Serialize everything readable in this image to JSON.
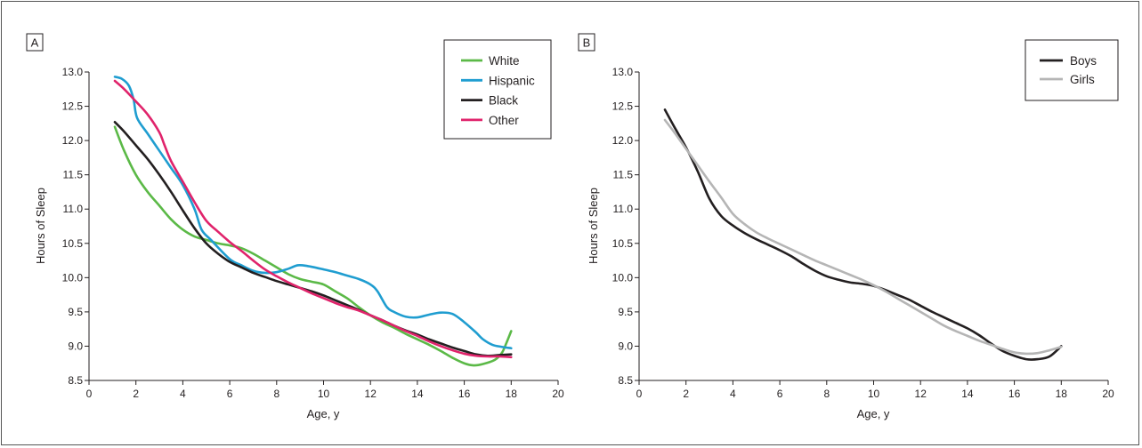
{
  "chart_data": [
    {
      "type": "line",
      "panel_label": "A",
      "xlabel": "Age, y",
      "ylabel": "Hours of Sleep",
      "xlim": [
        0,
        20
      ],
      "ylim": [
        8.5,
        13.0
      ],
      "xticks": [
        0,
        2,
        4,
        6,
        8,
        10,
        12,
        14,
        16,
        18,
        20
      ],
      "yticks": [
        "8.5",
        "9.0",
        "9.5",
        "10.0",
        "10.5",
        "11.0",
        "11.5",
        "12.0",
        "12.5",
        "13.0"
      ],
      "grid": false,
      "legend_position": "top-right",
      "series": [
        {
          "name": "White",
          "color": "#5bb947",
          "points": [
            [
              1.1,
              12.2
            ],
            [
              1.5,
              11.85
            ],
            [
              2,
              11.5
            ],
            [
              2.5,
              11.25
            ],
            [
              3,
              11.05
            ],
            [
              3.5,
              10.85
            ],
            [
              4,
              10.7
            ],
            [
              4.5,
              10.6
            ],
            [
              5,
              10.55
            ],
            [
              5.5,
              10.5
            ],
            [
              6,
              10.47
            ],
            [
              6.5,
              10.43
            ],
            [
              7,
              10.35
            ],
            [
              7.5,
              10.25
            ],
            [
              8,
              10.15
            ],
            [
              8.5,
              10.05
            ],
            [
              9,
              9.98
            ],
            [
              9.5,
              9.94
            ],
            [
              10,
              9.9
            ],
            [
              10.5,
              9.8
            ],
            [
              11,
              9.7
            ],
            [
              11.5,
              9.57
            ],
            [
              12,
              9.45
            ],
            [
              12.5,
              9.35
            ],
            [
              13,
              9.27
            ],
            [
              13.5,
              9.18
            ],
            [
              14,
              9.1
            ],
            [
              14.5,
              9.02
            ],
            [
              15,
              8.93
            ],
            [
              15.5,
              8.83
            ],
            [
              16,
              8.75
            ],
            [
              16.4,
              8.72
            ],
            [
              16.8,
              8.74
            ],
            [
              17.3,
              8.8
            ],
            [
              17.6,
              8.9
            ],
            [
              17.8,
              9.05
            ],
            [
              18,
              9.22
            ]
          ]
        },
        {
          "name": "Hispanic",
          "color": "#1f9dd0",
          "points": [
            [
              1.1,
              12.93
            ],
            [
              1.4,
              12.9
            ],
            [
              1.7,
              12.8
            ],
            [
              1.9,
              12.6
            ],
            [
              2.05,
              12.33
            ],
            [
              2.5,
              12.1
            ],
            [
              3,
              11.85
            ],
            [
              3.5,
              11.6
            ],
            [
              4,
              11.35
            ],
            [
              4.5,
              11.0
            ],
            [
              4.8,
              10.7
            ],
            [
              5.2,
              10.55
            ],
            [
              6,
              10.27
            ],
            [
              6.5,
              10.18
            ],
            [
              7,
              10.1
            ],
            [
              7.5,
              10.07
            ],
            [
              8,
              10.08
            ],
            [
              8.5,
              10.13
            ],
            [
              8.9,
              10.18
            ],
            [
              9.3,
              10.17
            ],
            [
              10,
              10.12
            ],
            [
              10.5,
              10.08
            ],
            [
              11,
              10.03
            ],
            [
              11.5,
              9.98
            ],
            [
              12,
              9.9
            ],
            [
              12.3,
              9.8
            ],
            [
              12.7,
              9.57
            ],
            [
              13,
              9.5
            ],
            [
              13.5,
              9.43
            ],
            [
              14,
              9.42
            ],
            [
              14.5,
              9.46
            ],
            [
              15,
              9.49
            ],
            [
              15.5,
              9.47
            ],
            [
              16,
              9.35
            ],
            [
              16.5,
              9.2
            ],
            [
              16.8,
              9.1
            ],
            [
              17.2,
              9.02
            ],
            [
              17.6,
              8.99
            ],
            [
              18,
              8.97
            ]
          ]
        },
        {
          "name": "Black",
          "color": "#231f20",
          "points": [
            [
              1.1,
              12.27
            ],
            [
              1.5,
              12.13
            ],
            [
              2,
              11.93
            ],
            [
              2.5,
              11.73
            ],
            [
              3,
              11.5
            ],
            [
              3.5,
              11.25
            ],
            [
              4,
              10.98
            ],
            [
              4.5,
              10.72
            ],
            [
              5,
              10.5
            ],
            [
              5.5,
              10.35
            ],
            [
              6,
              10.23
            ],
            [
              6.5,
              10.15
            ],
            [
              7,
              10.07
            ],
            [
              7.5,
              10.01
            ],
            [
              8,
              9.95
            ],
            [
              8.5,
              9.9
            ],
            [
              9,
              9.85
            ],
            [
              9.5,
              9.8
            ],
            [
              10,
              9.74
            ],
            [
              10.5,
              9.67
            ],
            [
              11,
              9.6
            ],
            [
              11.5,
              9.53
            ],
            [
              12,
              9.45
            ],
            [
              12.5,
              9.38
            ],
            [
              13,
              9.3
            ],
            [
              13.5,
              9.23
            ],
            [
              14,
              9.17
            ],
            [
              14.5,
              9.1
            ],
            [
              15,
              9.04
            ],
            [
              15.5,
              8.98
            ],
            [
              16,
              8.93
            ],
            [
              16.5,
              8.88
            ],
            [
              17,
              8.86
            ],
            [
              17.5,
              8.87
            ],
            [
              18,
              8.88
            ]
          ]
        },
        {
          "name": "Other",
          "color": "#e0236b",
          "points": [
            [
              1.1,
              12.87
            ],
            [
              1.5,
              12.75
            ],
            [
              2,
              12.57
            ],
            [
              2.5,
              12.38
            ],
            [
              3,
              12.12
            ],
            [
              3.2,
              11.95
            ],
            [
              3.5,
              11.7
            ],
            [
              4,
              11.4
            ],
            [
              4.5,
              11.1
            ],
            [
              5,
              10.83
            ],
            [
              5.5,
              10.67
            ],
            [
              6,
              10.52
            ],
            [
              6.5,
              10.39
            ],
            [
              7,
              10.25
            ],
            [
              7.5,
              10.12
            ],
            [
              8,
              10.02
            ],
            [
              8.5,
              9.93
            ],
            [
              9,
              9.85
            ],
            [
              9.5,
              9.77
            ],
            [
              10,
              9.7
            ],
            [
              10.5,
              9.63
            ],
            [
              11,
              9.57
            ],
            [
              11.5,
              9.52
            ],
            [
              12,
              9.45
            ],
            [
              12.5,
              9.38
            ],
            [
              13,
              9.3
            ],
            [
              13.5,
              9.22
            ],
            [
              14,
              9.15
            ],
            [
              14.5,
              9.07
            ],
            [
              15,
              9.0
            ],
            [
              15.5,
              8.94
            ],
            [
              16,
              8.89
            ],
            [
              16.5,
              8.86
            ],
            [
              17,
              8.85
            ],
            [
              17.5,
              8.85
            ],
            [
              18,
              8.84
            ]
          ]
        }
      ]
    },
    {
      "type": "line",
      "panel_label": "B",
      "xlabel": "Age, y",
      "ylabel": "Hours of Sleep",
      "xlim": [
        0,
        20
      ],
      "ylim": [
        8.5,
        13.0
      ],
      "xticks": [
        0,
        2,
        4,
        6,
        8,
        10,
        12,
        14,
        16,
        18,
        20
      ],
      "yticks": [
        "8.5",
        "9.0",
        "9.5",
        "10.0",
        "10.5",
        "11.0",
        "11.5",
        "12.0",
        "12.5",
        "13.0"
      ],
      "grid": false,
      "legend_position": "top-right",
      "series": [
        {
          "name": "Boys",
          "color": "#231f20",
          "points": [
            [
              1.1,
              12.45
            ],
            [
              1.5,
              12.2
            ],
            [
              2,
              11.9
            ],
            [
              2.5,
              11.55
            ],
            [
              3,
              11.15
            ],
            [
              3.5,
              10.9
            ],
            [
              4,
              10.76
            ],
            [
              4.5,
              10.65
            ],
            [
              5,
              10.56
            ],
            [
              5.5,
              10.48
            ],
            [
              6,
              10.4
            ],
            [
              6.5,
              10.31
            ],
            [
              7,
              10.2
            ],
            [
              7.5,
              10.1
            ],
            [
              8,
              10.02
            ],
            [
              8.5,
              9.97
            ],
            [
              9,
              9.93
            ],
            [
              9.5,
              9.91
            ],
            [
              10,
              9.88
            ],
            [
              10.5,
              9.82
            ],
            [
              11,
              9.75
            ],
            [
              11.5,
              9.68
            ],
            [
              12,
              9.59
            ],
            [
              12.5,
              9.5
            ],
            [
              13,
              9.42
            ],
            [
              13.5,
              9.34
            ],
            [
              14,
              9.26
            ],
            [
              14.5,
              9.16
            ],
            [
              15,
              9.04
            ],
            [
              15.5,
              8.93
            ],
            [
              16,
              8.86
            ],
            [
              16.5,
              8.81
            ],
            [
              17,
              8.81
            ],
            [
              17.5,
              8.85
            ],
            [
              18,
              9.0
            ]
          ]
        },
        {
          "name": "Girls",
          "color": "#b5b5b5",
          "points": [
            [
              1.1,
              12.3
            ],
            [
              1.5,
              12.12
            ],
            [
              2,
              11.88
            ],
            [
              2.5,
              11.64
            ],
            [
              3,
              11.4
            ],
            [
              3.5,
              11.17
            ],
            [
              4,
              10.93
            ],
            [
              4.5,
              10.78
            ],
            [
              5,
              10.66
            ],
            [
              5.5,
              10.57
            ],
            [
              6,
              10.49
            ],
            [
              6.5,
              10.41
            ],
            [
              7,
              10.33
            ],
            [
              7.5,
              10.25
            ],
            [
              8,
              10.18
            ],
            [
              8.5,
              10.11
            ],
            [
              9,
              10.04
            ],
            [
              9.5,
              9.97
            ],
            [
              10,
              9.89
            ],
            [
              10.5,
              9.8
            ],
            [
              11,
              9.7
            ],
            [
              11.5,
              9.6
            ],
            [
              12,
              9.5
            ],
            [
              12.5,
              9.4
            ],
            [
              13,
              9.3
            ],
            [
              13.5,
              9.22
            ],
            [
              14,
              9.15
            ],
            [
              14.5,
              9.08
            ],
            [
              15,
              9.02
            ],
            [
              15.5,
              8.96
            ],
            [
              16,
              8.91
            ],
            [
              16.5,
              8.89
            ],
            [
              17,
              8.9
            ],
            [
              17.5,
              8.94
            ],
            [
              18,
              8.99
            ]
          ]
        }
      ]
    }
  ]
}
